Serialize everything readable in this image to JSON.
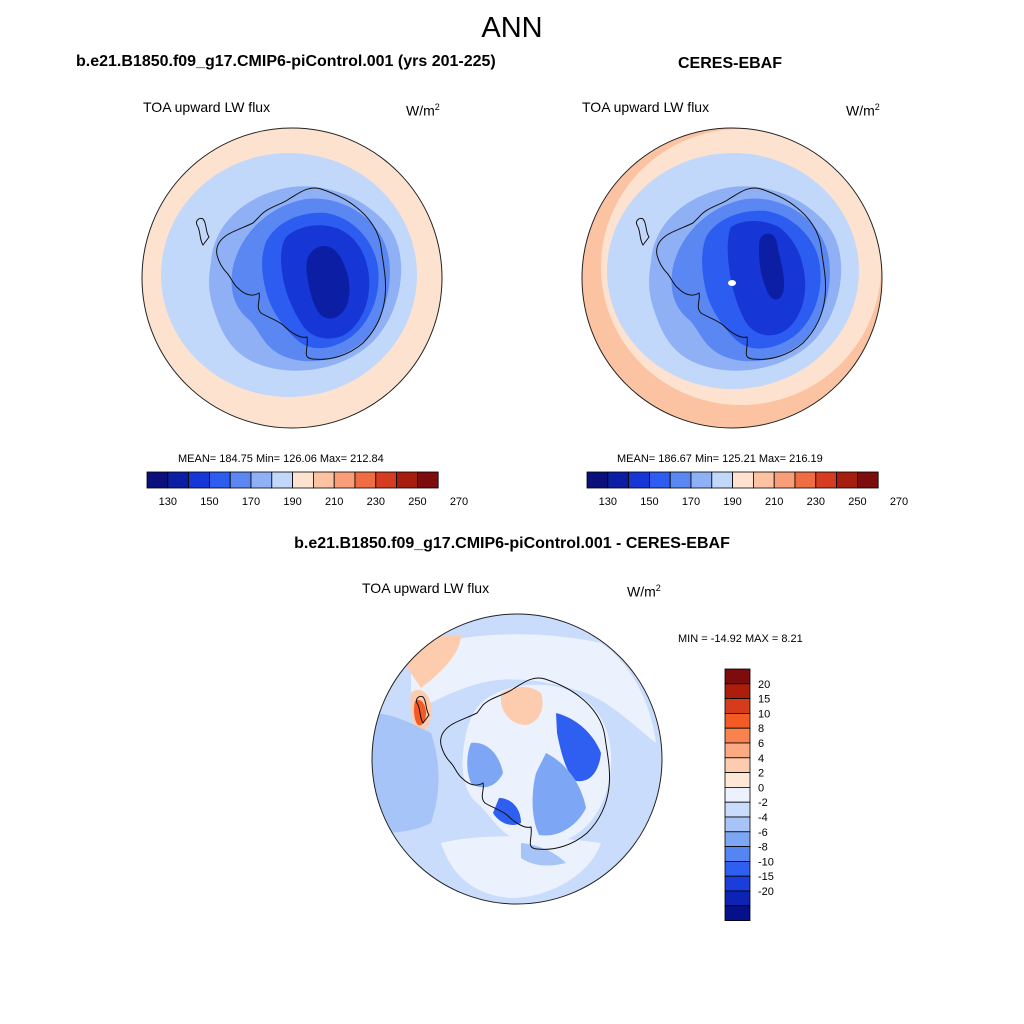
{
  "figure": {
    "title": "ANN"
  },
  "panels": [
    {
      "title": "b.e21.B1850.f09_g17.CMIP6-piControl.001 (yrs 201-225)",
      "variable": "TOA upward LW flux",
      "units": "W/m",
      "units_sup": "2",
      "stats": "MEAN= 184.75  Min= 126.06  Max= 212.84"
    },
    {
      "title": "CERES-EBAF",
      "variable": "TOA upward LW flux",
      "units": "W/m",
      "units_sup": "2",
      "stats": "MEAN= 186.67  Min= 125.21  Max= 216.19"
    },
    {
      "title": "b.e21.B1850.f09_g17.CMIP6-piControl.001 - CERES-EBAF",
      "variable": "TOA upward LW flux",
      "units": "W/m",
      "units_sup": "2",
      "stats": "MIN = -14.92 MAX =   8.21"
    }
  ],
  "abs_colorbar": {
    "colors": [
      "#0b0f7c",
      "#0c1ea3",
      "#1637d6",
      "#2c5cf0",
      "#5a87f2",
      "#8fb0f5",
      "#c2d8fb",
      "#fde3cf",
      "#fcc3a3",
      "#f99e78",
      "#f06d44",
      "#d63c1f",
      "#a61d0e",
      "#7d0c0c"
    ],
    "tick_labels": [
      "130",
      "150",
      "170",
      "190",
      "210",
      "230",
      "250",
      "270"
    ]
  },
  "diff_colorbar": {
    "colors": [
      "#7d0c0c",
      "#ad1d0c",
      "#d63c1c",
      "#f35a25",
      "#f9834f",
      "#fcaa83",
      "#fdccaf",
      "#fde8d8",
      "#ecf2fd",
      "#c9dcfb",
      "#a6c4f7",
      "#7da7f4",
      "#5585f2",
      "#2e5ff0",
      "#1a3ddc",
      "#0c23b5",
      "#05118a"
    ],
    "tick_labels": [
      "20",
      "15",
      "10",
      "8",
      "6",
      "4",
      "2",
      "0",
      "-2",
      "-4",
      "-6",
      "-8",
      "-10",
      "-15",
      "-20"
    ]
  },
  "fields": {
    "model_colors": {
      "outer": "#fde3cf",
      "ocean": "#c2d8fb",
      "coast": "#8fb0f5",
      "ice1": "#5a87f2",
      "ice2": "#2c5cf0",
      "ice3": "#1637d6",
      "core": "#0c1ea3"
    },
    "obs_colors": {
      "outer": "#fcc3a3",
      "ring": "#fde3cf",
      "ocean": "#c2d8fb",
      "coast": "#8fb0f5",
      "ice1": "#5a87f2",
      "ice2": "#2c5cf0",
      "ice3": "#1637d6",
      "core": "#0c1ea3"
    },
    "diff_colors": {
      "base": "#c9dcfb",
      "neutral": "#ecf2fd",
      "weak": "#a6c4f7",
      "mid": "#7da7f4",
      "strong": "#2e5ff0",
      "warm": "#fdccaf",
      "hot": "#f35a25"
    }
  }
}
